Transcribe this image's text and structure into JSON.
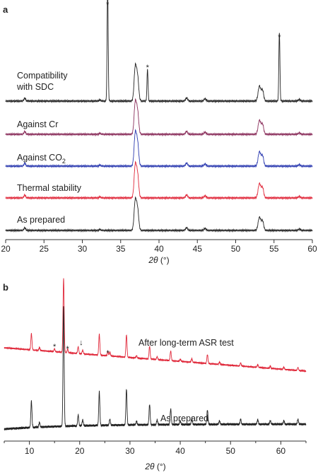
{
  "chart_data": [
    {
      "type": "line",
      "panel": "a",
      "xlabel_var": "2θ",
      "xlabel_unit": " (°)",
      "xlim": [
        20,
        60
      ],
      "xticks": [
        20,
        25,
        30,
        35,
        40,
        45,
        50,
        55,
        60
      ],
      "baseline_peaks_2theta": [
        22.5,
        32.3,
        36.9,
        37.2,
        43.6,
        46.0,
        53.1,
        53.5,
        58.3
      ],
      "series": [
        {
          "name": "Compatibility with SDC",
          "label_line1": "Compatibility",
          "label_line2": "with SDC",
          "color": "#222222",
          "extra_peaks_2theta": [
            33.3,
            38.5,
            55.7
          ],
          "extra_peak_markers": [
            "*",
            "*",
            "*"
          ]
        },
        {
          "name": "Against Cr",
          "label_line1": "Against Cr",
          "color": "#8a2e5b"
        },
        {
          "name": "Against CO2",
          "label_line1": "Against CO",
          "label_sub": "2",
          "color": "#2c3bb0"
        },
        {
          "name": "Thermal stability",
          "label_line1": "Thermal stability",
          "color": "#e0283a"
        },
        {
          "name": "As prepared",
          "label_line1": "As prepared",
          "color": "#222222"
        }
      ]
    },
    {
      "type": "line",
      "panel": "b",
      "xlabel_var": "2θ",
      "xlabel_unit": " (°)",
      "xlim": [
        5,
        65
      ],
      "xticks": [
        10,
        20,
        30,
        40,
        50,
        60
      ],
      "peaks_2theta": [
        10.4,
        12.0,
        16.8,
        19.7,
        20.6,
        23.9,
        26.0,
        29.3,
        31.3,
        33.9,
        35.4,
        38.1,
        40.0,
        42.3,
        45.4,
        47.8,
        52.0,
        55.4,
        57.9,
        60.6,
        63.4
      ],
      "series": [
        {
          "name": "After long-term ASR test",
          "color": "#e0283a",
          "markers": [
            {
              "x": 15.0,
              "symbol": "*"
            },
            {
              "x": 17.6,
              "symbol": "*"
            },
            {
              "x": 20.3,
              "symbol": "↓"
            },
            {
              "x": 25.6,
              "symbol": "*"
            }
          ]
        },
        {
          "name": "As prepared",
          "color": "#222222"
        }
      ]
    }
  ]
}
